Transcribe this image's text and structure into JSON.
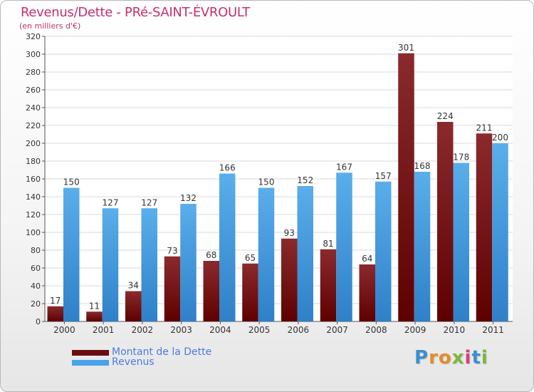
{
  "chart_data": {
    "type": "bar",
    "title": "Revenus/Dette - PRé-SAINT-ÉVROULT",
    "subtitle": "(en milliers d'€)",
    "xlabel": "",
    "ylabel": "",
    "ylim": [
      0,
      320
    ],
    "yticks": [
      0,
      20,
      40,
      60,
      80,
      100,
      120,
      140,
      160,
      180,
      200,
      220,
      240,
      260,
      280,
      300,
      320
    ],
    "grid": true,
    "categories": [
      "2000",
      "2001",
      "2002",
      "2003",
      "2004",
      "2005",
      "2006",
      "2007",
      "2008",
      "2009",
      "2010",
      "2011"
    ],
    "series": [
      {
        "name": "Montant de la Dette",
        "color": "#7a1416",
        "values": [
          17,
          11,
          34,
          73,
          68,
          65,
          93,
          81,
          64,
          301,
          224,
          211
        ]
      },
      {
        "name": "Revenus",
        "color": "#4aa3e8",
        "values": [
          150,
          127,
          127,
          132,
          166,
          150,
          152,
          167,
          157,
          168,
          178,
          200
        ]
      }
    ],
    "legend_position": "bottom-left"
  },
  "legend": {
    "items": [
      {
        "label": "Montant de la Dette",
        "color": "#6b0d10"
      },
      {
        "label": "Revenus",
        "color": "#4aa3e8"
      }
    ]
  },
  "brand": {
    "letters": [
      "P",
      "r",
      "o",
      "x",
      "i",
      "t",
      "i"
    ],
    "colors": [
      "#3b8fd0",
      "#e38d2a",
      "#e38d2a",
      "#7ab83a",
      "#d93d7b",
      "#3b8fd0",
      "#7ab83a"
    ]
  }
}
